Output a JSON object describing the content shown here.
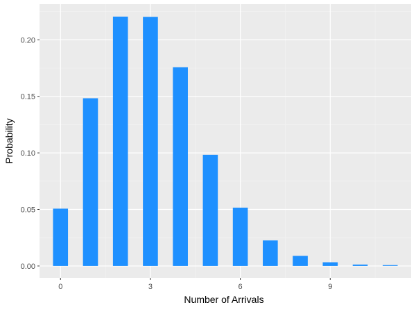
{
  "chart_data": {
    "type": "bar",
    "title": "",
    "xlabel": "Number of Arrivals",
    "ylabel": "Probability",
    "x": [
      0,
      1,
      2,
      3,
      4,
      5,
      6,
      7,
      8,
      9,
      10,
      11
    ],
    "values": [
      0.0507,
      0.1483,
      0.2205,
      0.2203,
      0.1757,
      0.0983,
      0.0516,
      0.0226,
      0.009,
      0.0033,
      0.0013,
      0.0008
    ],
    "xlim": [
      -0.7,
      11.7
    ],
    "ylim": [
      -0.0105,
      0.2315
    ],
    "x_ticks": [
      0,
      3,
      6,
      9
    ],
    "x_tick_labels": [
      "0",
      "3",
      "6",
      "9"
    ],
    "y_ticks": [
      0.0,
      0.05,
      0.1,
      0.15,
      0.2
    ],
    "y_tick_labels": [
      "0.00",
      "0.05",
      "0.10",
      "0.15",
      "0.20"
    ],
    "grid": true,
    "legend": "none",
    "colors": {
      "bar": "#1E90FF",
      "panel_background": "#EBEBEB",
      "grid_major": "#FFFFFF",
      "grid_minor": "#F4F4F4",
      "tick_text": "#4D4D4D",
      "tick_mark": "#333333"
    }
  }
}
